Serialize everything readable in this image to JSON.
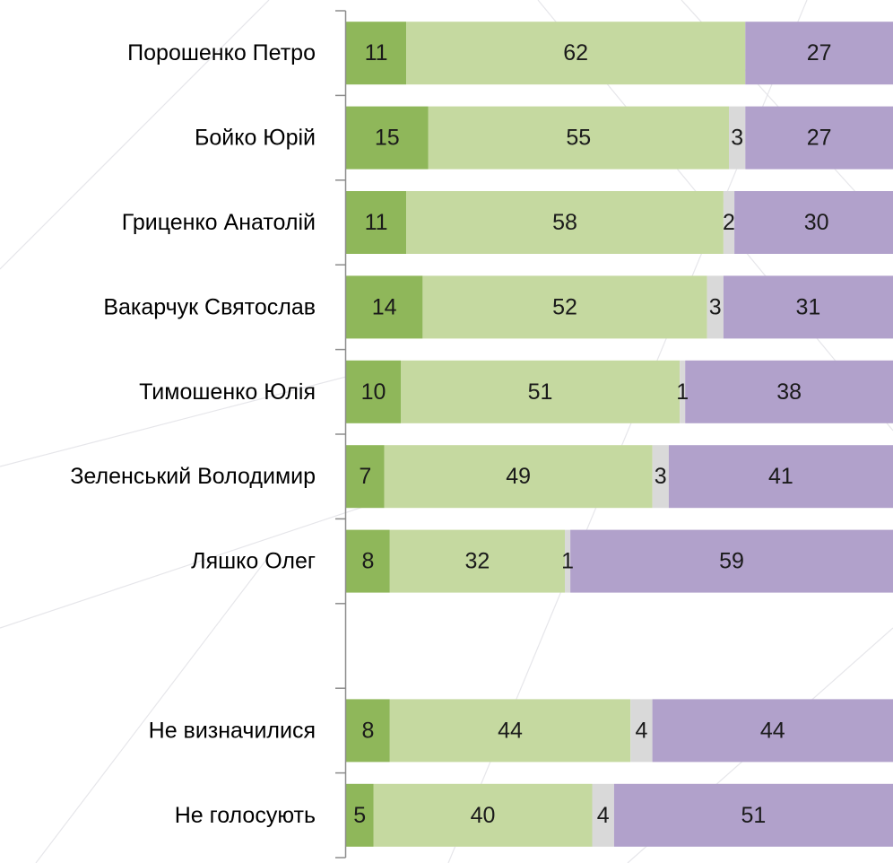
{
  "chart_data": {
    "type": "bar",
    "orientation": "horizontal",
    "stacked": true,
    "categories": [
      "Порошенко Петро",
      "Бойко Юрій",
      "Гриценко Анатолій",
      "Вакарчук Святослав",
      "Тимошенко Юлія",
      "Зеленський Володимир",
      "Ляшко Олег",
      "",
      "Не визначилися",
      "Не голосують"
    ],
    "series": [
      {
        "color": "#8fb75a",
        "values": [
          11,
          15,
          11,
          14,
          10,
          7,
          8,
          null,
          8,
          5
        ]
      },
      {
        "color": "#c5d9a0",
        "values": [
          62,
          55,
          58,
          52,
          51,
          49,
          32,
          null,
          44,
          40
        ]
      },
      {
        "color": "#d9d9d9",
        "values": [
          0,
          3,
          2,
          3,
          1,
          3,
          1,
          null,
          4,
          4
        ]
      },
      {
        "color": "#b1a1cb",
        "values": [
          27,
          27,
          30,
          31,
          38,
          41,
          59,
          null,
          44,
          51
        ]
      }
    ],
    "xlim": [
      0,
      100
    ],
    "grid": false,
    "legend": "none",
    "title": "",
    "xlabel": "",
    "ylabel": ""
  }
}
